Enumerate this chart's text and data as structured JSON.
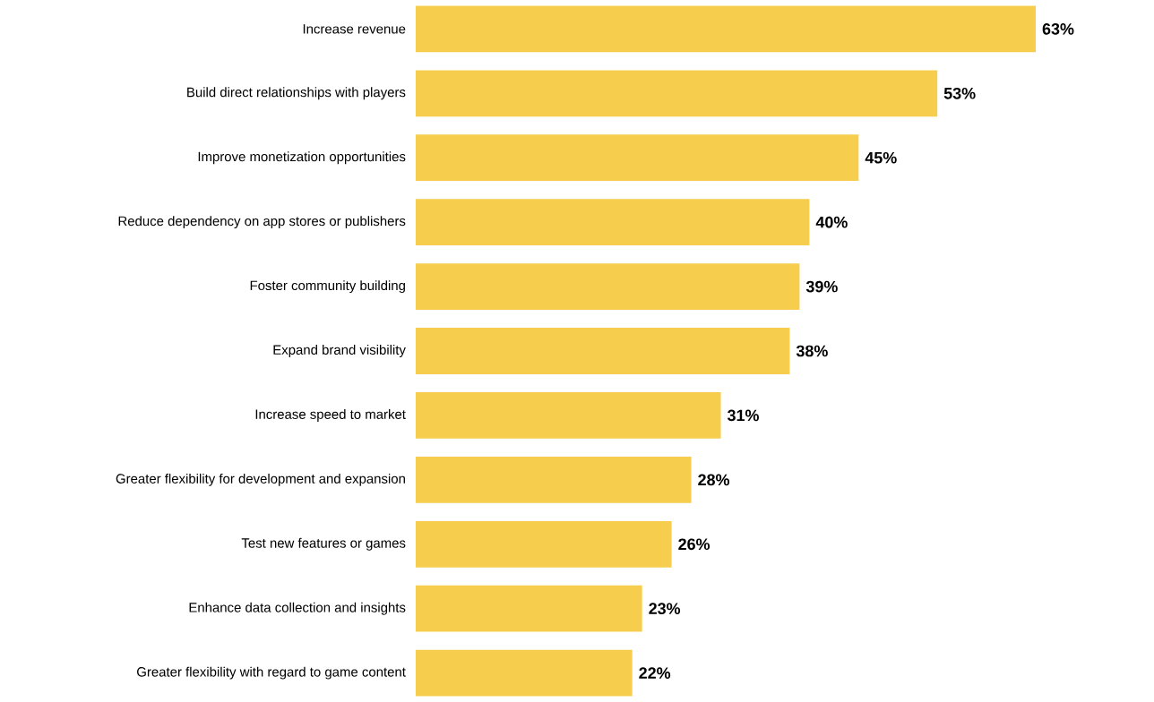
{
  "chart_data": {
    "type": "bar",
    "orientation": "horizontal",
    "categories": [
      "Increase revenue",
      "Build direct relationships with players",
      "Improve monetization opportunities",
      "Reduce dependency on app stores or publishers",
      "Foster community building",
      "Expand brand visibility",
      "Increase speed to market",
      "Greater flexibility for development and expansion",
      "Test new features or games",
      "Enhance data collection and insights",
      "Greater flexibility with regard to game content"
    ],
    "values": [
      63,
      53,
      45,
      40,
      39,
      38,
      31,
      28,
      26,
      23,
      22
    ],
    "value_labels": [
      "63%",
      "53%",
      "45%",
      "40%",
      "39%",
      "38%",
      "31%",
      "28%",
      "26%",
      "23%",
      "22%"
    ],
    "color": "#f6cd4c"
  }
}
